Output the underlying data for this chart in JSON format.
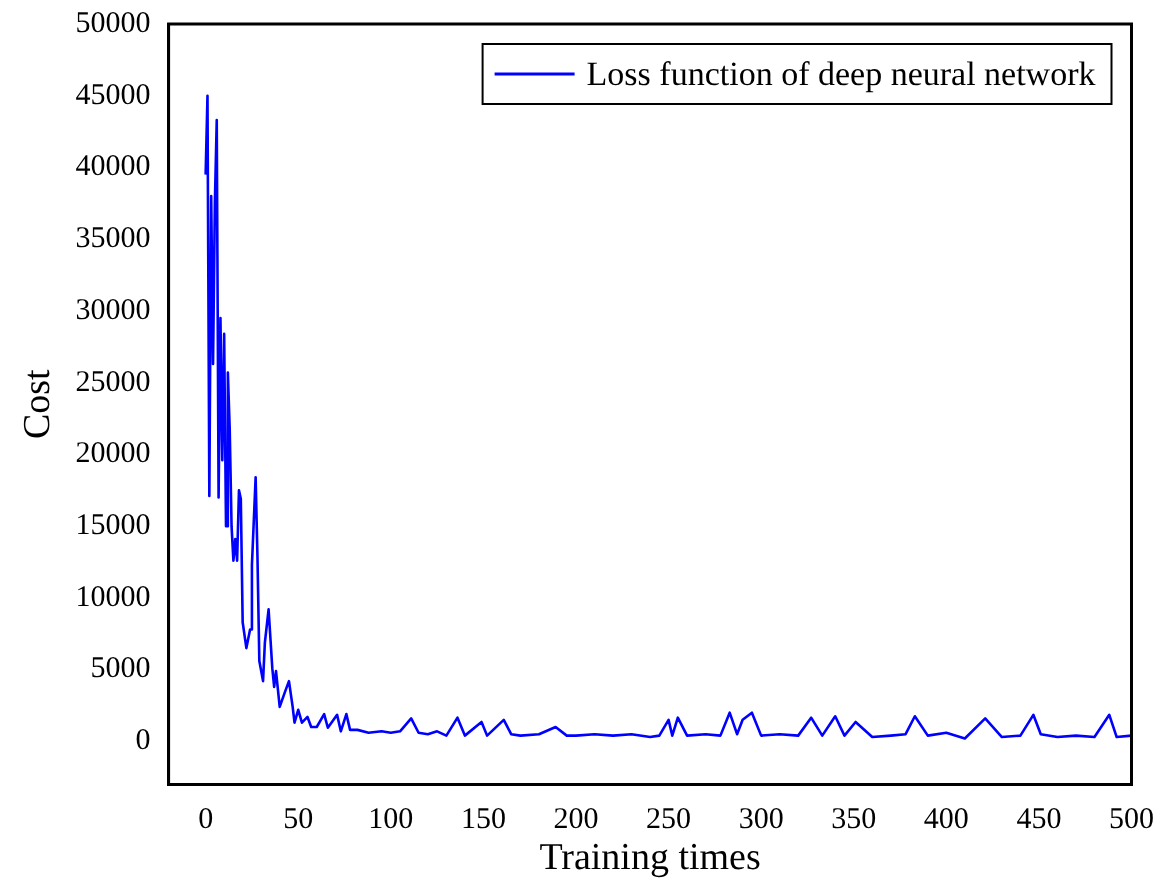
{
  "chart_data": {
    "type": "line",
    "xlabel": "Training times",
    "ylabel": "Cost",
    "xlim": [
      -20,
      500
    ],
    "xticks": [
      0,
      50,
      100,
      150,
      200,
      250,
      300,
      350,
      400,
      450,
      500
    ],
    "ylim": [
      -3000,
      50000
    ],
    "yticks": [
      0,
      5000,
      10000,
      15000,
      20000,
      25000,
      30000,
      35000,
      40000,
      45000,
      50000
    ],
    "legend": "top right",
    "grid": false,
    "marker": "none",
    "line_style": "solid",
    "series": [
      {
        "name": "Loss function of deep neural network",
        "color": "#0000ff",
        "x": [
          0,
          1,
          2,
          3,
          4,
          5,
          6,
          7,
          8,
          9,
          10,
          11,
          12,
          13,
          14,
          15,
          16,
          17,
          18,
          19,
          20,
          22,
          24,
          25,
          27,
          28,
          29,
          31,
          32,
          34,
          36,
          37,
          38,
          40,
          43,
          45,
          47,
          48,
          50,
          52,
          55,
          57,
          60,
          64,
          66,
          71,
          73,
          76,
          78,
          82,
          88,
          95,
          100,
          105,
          111,
          115,
          120,
          125,
          130,
          136,
          140,
          149,
          152,
          161,
          165,
          170,
          180,
          189,
          195,
          200,
          210,
          220,
          230,
          240,
          245,
          250,
          252,
          255,
          260,
          270,
          278,
          283,
          287,
          290,
          295,
          300,
          310,
          320,
          327,
          333,
          340,
          345,
          351,
          360,
          370,
          378,
          383,
          390,
          400,
          410,
          421,
          430,
          440,
          447,
          451,
          460,
          470,
          480,
          488,
          492,
          500
        ],
        "values": [
          39500,
          45000,
          17100,
          38000,
          26300,
          37600,
          43300,
          17000,
          29500,
          19600,
          28400,
          15000,
          25700,
          21800,
          15000,
          12600,
          14100,
          12600,
          17500,
          16900,
          8300,
          6500,
          7800,
          12300,
          18400,
          12800,
          5600,
          4200,
          6900,
          9200,
          5100,
          3800,
          4900,
          2400,
          3500,
          4200,
          2400,
          1300,
          2200,
          1300,
          1700,
          1000,
          1000,
          1900,
          950,
          1850,
          700,
          1900,
          800,
          800,
          600,
          700,
          600,
          700,
          1600,
          600,
          500,
          700,
          400,
          1650,
          400,
          1350,
          400,
          1500,
          500,
          400,
          500,
          1000,
          400,
          400,
          500,
          400,
          500,
          300,
          400,
          1500,
          400,
          1650,
          400,
          500,
          400,
          2000,
          500,
          1500,
          2000,
          400,
          500,
          400,
          1650,
          400,
          1750,
          400,
          1350,
          300,
          400,
          500,
          1750,
          400,
          600,
          200,
          1600,
          300,
          400,
          1850,
          500,
          300,
          400,
          300,
          1850,
          300,
          400
        ]
      }
    ]
  }
}
